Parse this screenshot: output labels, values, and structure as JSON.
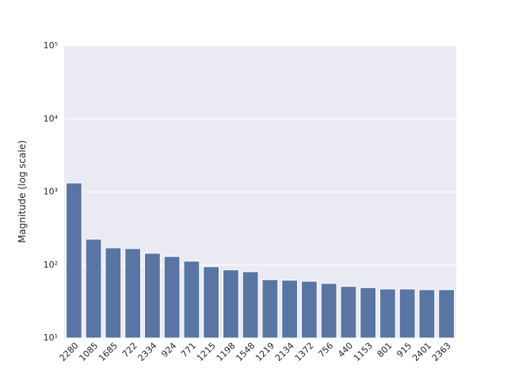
{
  "chart_data": {
    "type": "bar",
    "ylabel": "Magnitude (log scale)",
    "categories": [
      "2280",
      "1085",
      "1685",
      "722",
      "2334",
      "924",
      "771",
      "1215",
      "1198",
      "1548",
      "1219",
      "2134",
      "1372",
      "756",
      "440",
      "1153",
      "801",
      "915",
      "2401",
      "2363"
    ],
    "values": [
      1330,
      226,
      172,
      168,
      145,
      131,
      113,
      95,
      86,
      81,
      63,
      62,
      60,
      56,
      51,
      49,
      47,
      47,
      46,
      46
    ],
    "color": "#5975a4",
    "log_scale": true,
    "grid": true,
    "ylim": [
      10,
      100000
    ],
    "yticks": [
      {
        "value": 10,
        "label": "10¹"
      },
      {
        "value": 100,
        "label": "10²"
      },
      {
        "value": 1000,
        "label": "10³"
      },
      {
        "value": 10000,
        "label": "10⁴"
      },
      {
        "value": 100000,
        "label": "10⁵"
      }
    ]
  }
}
